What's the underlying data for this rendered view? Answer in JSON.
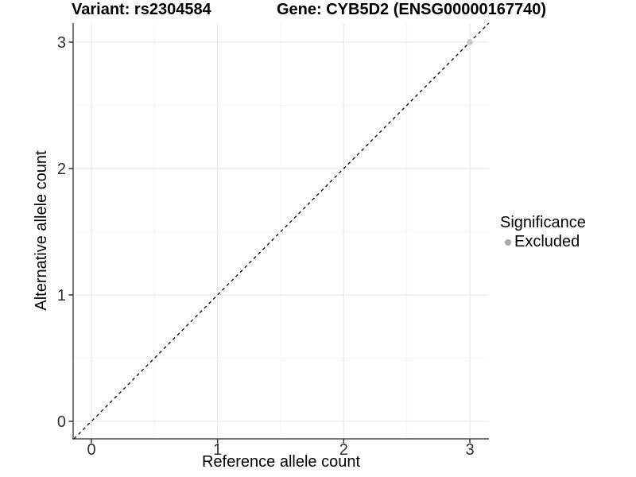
{
  "header": {
    "variant_title": "Variant: rs2304584",
    "gene_title": "Gene: CYB5D2 (ENSG00000167740)"
  },
  "legend": {
    "title": "Significance",
    "items": [
      {
        "label": "Excluded",
        "color": "#a9a9a9"
      }
    ]
  },
  "chart_data": {
    "type": "scatter",
    "title": "Variant: rs2304584   Gene: CYB5D2 (ENSG00000167740)",
    "xlabel": "Reference allele count",
    "ylabel": "Alternative allele count",
    "xticks": [
      0,
      1,
      2,
      3
    ],
    "yticks": [
      0,
      1,
      2,
      3
    ],
    "xlim": [
      -0.15,
      3.15
    ],
    "ylim": [
      -0.14,
      3.15
    ],
    "grid": "major+minor",
    "legend_position": "right",
    "series": [
      {
        "name": "Excluded",
        "color": "#c8c8c8",
        "points": [
          {
            "x": 3,
            "y": 3
          }
        ]
      }
    ],
    "reference_line": {
      "slope": 1,
      "intercept": 0,
      "style": "dashed"
    }
  },
  "colors": {
    "background": "#ffffff",
    "grid_major": "#e9e9e9",
    "grid_minor": "#f4f4f4",
    "axis_line": "#4a4a4a",
    "tick_mark": "#333333",
    "tick_label": "#303030",
    "text": "#000000",
    "reference_line": "#111111",
    "point": "#c8c8c8",
    "legend_key": "#a9a9a9"
  }
}
